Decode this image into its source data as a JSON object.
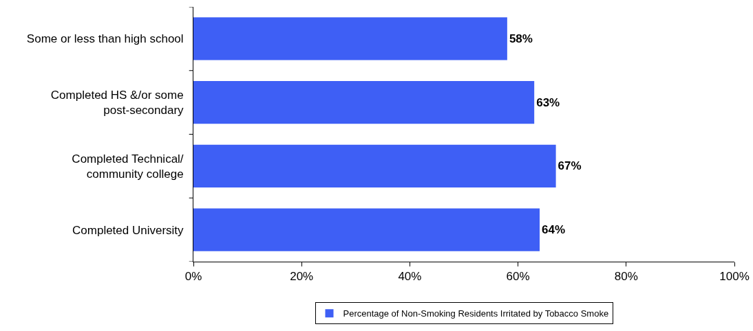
{
  "chart_data": {
    "type": "bar",
    "orientation": "horizontal",
    "categories": [
      "Some or less than high school",
      "Completed HS &/or some\npost-secondary",
      "Completed Technical/\ncommunity college",
      "Completed University"
    ],
    "series": [
      {
        "name": "Percentage of Non-Smoking Residents Irritated by Tobacco Smoke",
        "color": "#3e5ff5",
        "values": [
          58,
          63,
          67,
          64
        ],
        "value_labels": [
          "58%",
          "63%",
          "67%",
          "64%"
        ]
      }
    ],
    "xlim": [
      0,
      100
    ],
    "xticks": [
      {
        "value": 0,
        "label": "0%"
      },
      {
        "value": 20,
        "label": "20%"
      },
      {
        "value": 40,
        "label": "40%"
      },
      {
        "value": 60,
        "label": "60%"
      },
      {
        "value": 80,
        "label": "80%"
      },
      {
        "value": 100,
        "label": "100%"
      }
    ],
    "grid": false,
    "legend": "bottom"
  }
}
